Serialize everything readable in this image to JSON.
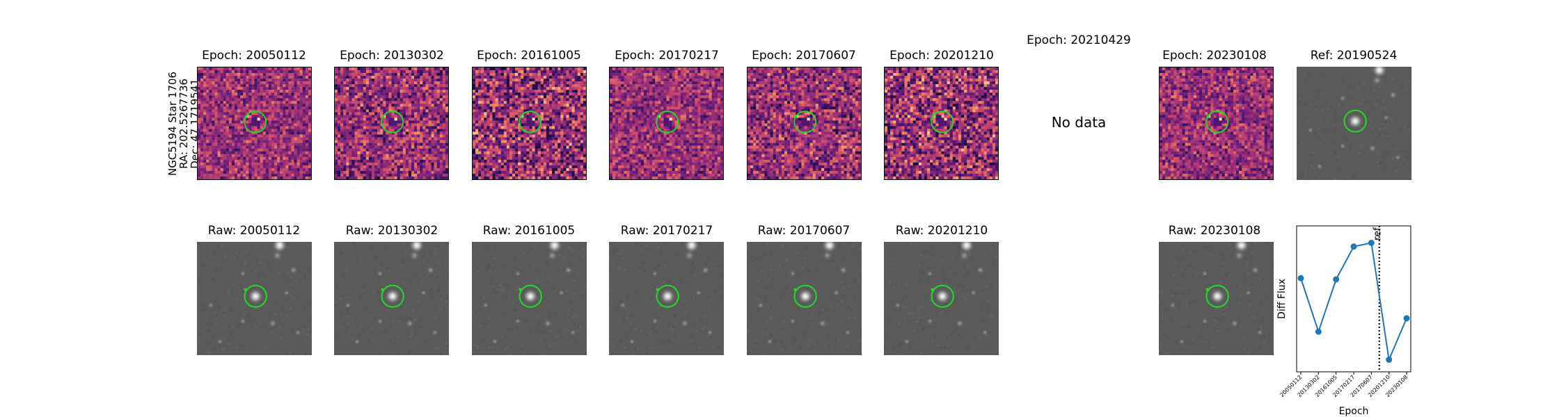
{
  "star_info": {
    "name": "NGC5194 Star 1706",
    "ra": "RA: 202.5267736",
    "dec": "Dec: 47.1719541"
  },
  "diff_panels": [
    {
      "title": "Epoch: 20050112",
      "available": true
    },
    {
      "title": "Epoch: 20130302",
      "available": true
    },
    {
      "title": "Epoch: 20161005",
      "available": true
    },
    {
      "title": "Epoch: 20170217",
      "available": true
    },
    {
      "title": "Epoch: 20170607",
      "available": true
    },
    {
      "title": "Epoch: 20201210",
      "available": true
    },
    {
      "title": "Epoch: 20210429",
      "available": false,
      "message": "No data"
    },
    {
      "title": "Epoch: 20230108",
      "available": true
    }
  ],
  "ref_panel": {
    "title": "Ref: 20190524"
  },
  "raw_panels": [
    {
      "title": "Raw: 20050112"
    },
    {
      "title": "Raw: 20130302"
    },
    {
      "title": "Raw: 20161005"
    },
    {
      "title": "Raw: 20170217"
    },
    {
      "title": "Raw: 20170607"
    },
    {
      "title": "Raw: 20201210"
    },
    {
      "title": "Raw: 20230108"
    }
  ],
  "colors": {
    "circle": "#22dd22",
    "series": "#1f77b4"
  },
  "chart_data": {
    "type": "line",
    "x": [
      "20050112",
      "20130302",
      "20161005",
      "20170217",
      "20170607",
      "20201210",
      "20230108"
    ],
    "series": [
      {
        "values": [
          0.62,
          0.18,
          0.61,
          0.88,
          0.91,
          -0.05,
          0.29
        ]
      }
    ],
    "xlabel": "Epoch",
    "ylabel": "Diff Flux",
    "ylim": [
      -0.15,
      1.05
    ],
    "reference_line": {
      "label": "ref",
      "position_between": [
        "20170607",
        "20201210"
      ],
      "style": "dotted"
    },
    "show_y_ticks": false
  }
}
